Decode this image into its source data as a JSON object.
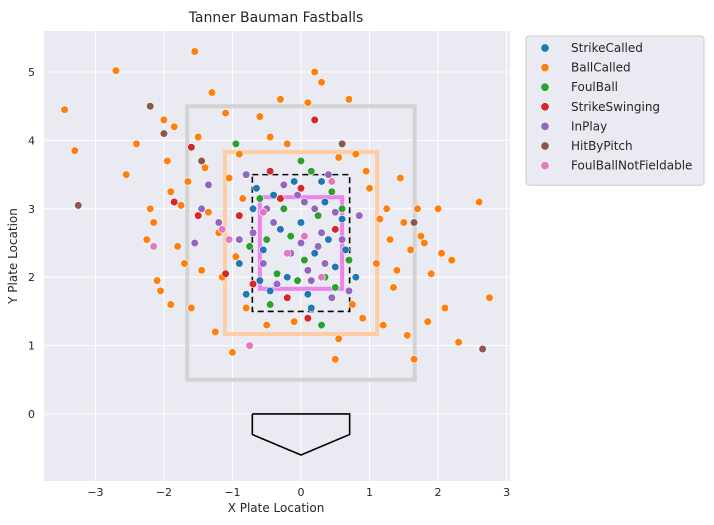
{
  "chart_data": {
    "type": "scatter",
    "title": "Tanner Bauman Fastballs",
    "xlabel": "X Plate Location",
    "ylabel": "Y Plate Location",
    "xlim": [
      -3.75,
      3.05
    ],
    "ylim": [
      -0.98,
      5.6
    ],
    "xticks": [
      -3,
      -2,
      -1,
      0,
      1,
      2,
      3
    ],
    "xtick_labels": [
      "−3",
      "−2",
      "−1",
      "0",
      "1",
      "2",
      "3"
    ],
    "yticks": [
      0,
      1,
      2,
      3,
      4,
      5
    ],
    "ytick_labels": [
      "0",
      "1",
      "2",
      "3",
      "4",
      "5"
    ],
    "grid": true,
    "legend_position": "outside-right",
    "background_color": "#eaeaf2",
    "series": [
      {
        "name": "StrikeCalled",
        "color": "#1f77b4"
      },
      {
        "name": "BallCalled",
        "color": "#ff7f0e"
      },
      {
        "name": "FoulBall",
        "color": "#2ca02c"
      },
      {
        "name": "StrikeSwinging",
        "color": "#d62728"
      },
      {
        "name": "InPlay",
        "color": "#9467bd"
      },
      {
        "name": "HitByPitch",
        "color": "#8c564b"
      },
      {
        "name": "FoulBallNotFieldable",
        "color": "#e377c2"
      }
    ],
    "shapes": [
      {
        "name": "outer-zone",
        "x": [
          -1.66,
          1.66
        ],
        "y": [
          0.5,
          4.5
        ],
        "color": "#d3d3d3",
        "style": "solid"
      },
      {
        "name": "middle-zone",
        "x": [
          -1.11,
          1.11
        ],
        "y": [
          1.17,
          3.83
        ],
        "color": "#ffcca3",
        "style": "solid"
      },
      {
        "name": "inner-zone",
        "x": [
          -0.6,
          0.6
        ],
        "y": [
          1.83,
          3.17
        ],
        "color": "#ee82ee",
        "style": "solid"
      },
      {
        "name": "strike-zone",
        "x": [
          -0.71,
          0.71
        ],
        "y": [
          1.5,
          3.5
        ],
        "color": "#000000",
        "style": "dashed"
      }
    ],
    "home_plate": {
      "x": [
        -0.71,
        0.71,
        0.71,
        0,
        -0.71,
        -0.71
      ],
      "y": [
        0,
        0,
        -0.3,
        -0.6,
        -0.3,
        0
      ]
    },
    "points": {
      "BallCalled": [
        [
          -3.45,
          4.45
        ],
        [
          -3.3,
          3.85
        ],
        [
          -2.7,
          5.02
        ],
        [
          -2.4,
          3.95
        ],
        [
          -2.2,
          3.0
        ],
        [
          -2.15,
          2.8
        ],
        [
          -2.1,
          1.95
        ],
        [
          -2.05,
          1.8
        ],
        [
          -2.0,
          4.3
        ],
        [
          -1.95,
          3.7
        ],
        [
          -1.9,
          3.25
        ],
        [
          -1.85,
          4.2
        ],
        [
          -1.8,
          2.45
        ],
        [
          -1.75,
          3.05
        ],
        [
          -1.7,
          2.2
        ],
        [
          -1.65,
          3.4
        ],
        [
          -1.6,
          1.55
        ],
        [
          -1.5,
          4.05
        ],
        [
          -1.45,
          2.1
        ],
        [
          -1.4,
          3.6
        ],
        [
          -1.3,
          4.7
        ],
        [
          -1.25,
          1.2
        ],
        [
          -1.2,
          2.65
        ],
        [
          -1.1,
          4.4
        ],
        [
          -1.0,
          0.9
        ],
        [
          -0.9,
          3.8
        ],
        [
          -0.8,
          1.55
        ],
        [
          -0.6,
          4.35
        ],
        [
          -0.5,
          1.3
        ],
        [
          -0.3,
          4.6
        ],
        [
          -0.1,
          1.35
        ],
        [
          0.1,
          4.55
        ],
        [
          0.3,
          4.85
        ],
        [
          0.5,
          0.8
        ],
        [
          0.55,
          1.1
        ],
        [
          0.7,
          4.6
        ],
        [
          0.8,
          3.8
        ],
        [
          0.9,
          1.4
        ],
        [
          1.0,
          3.3
        ],
        [
          1.1,
          2.2
        ],
        [
          1.2,
          1.3
        ],
        [
          1.25,
          3.0
        ],
        [
          1.3,
          2.55
        ],
        [
          1.35,
          1.85
        ],
        [
          1.45,
          3.45
        ],
        [
          1.5,
          2.8
        ],
        [
          1.55,
          1.15
        ],
        [
          1.6,
          2.4
        ],
        [
          1.65,
          0.8
        ],
        [
          1.7,
          3.0
        ],
        [
          1.8,
          2.5
        ],
        [
          1.85,
          1.35
        ],
        [
          1.9,
          2.05
        ],
        [
          2.0,
          3.0
        ],
        [
          2.05,
          2.35
        ],
        [
          2.1,
          1.55
        ],
        [
          2.2,
          2.25
        ],
        [
          2.6,
          3.1
        ],
        [
          2.75,
          1.7
        ],
        [
          -1.55,
          5.3
        ],
        [
          0.2,
          5.0
        ],
        [
          -0.2,
          3.95
        ],
        [
          0.95,
          3.55
        ],
        [
          -1.15,
          2.0
        ],
        [
          -1.35,
          2.95
        ],
        [
          -0.95,
          2.3
        ],
        [
          1.15,
          2.85
        ],
        [
          0.75,
          1.6
        ],
        [
          -0.85,
          3.15
        ],
        [
          1.4,
          2.1
        ],
        [
          -2.25,
          2.55
        ],
        [
          -1.9,
          1.6
        ],
        [
          2.3,
          1.05
        ],
        [
          -2.55,
          3.5
        ],
        [
          1.75,
          2.6
        ],
        [
          -1.05,
          3.45
        ],
        [
          0.55,
          3.75
        ],
        [
          -0.45,
          4.05
        ]
      ],
      "StrikeCalled": [
        [
          -0.55,
          2.4
        ],
        [
          -0.4,
          3.2
        ],
        [
          -0.2,
          2.0
        ],
        [
          0.0,
          2.8
        ],
        [
          0.2,
          2.35
        ],
        [
          0.35,
          3.1
        ],
        [
          0.5,
          2.15
        ],
        [
          0.6,
          2.85
        ],
        [
          -0.6,
          1.95
        ],
        [
          -0.1,
          3.4
        ],
        [
          0.1,
          1.75
        ],
        [
          0.4,
          2.55
        ],
        [
          -0.3,
          2.7
        ],
        [
          0.65,
          2.4
        ],
        [
          -0.7,
          3.0
        ],
        [
          -0.9,
          2.2
        ],
        [
          0.8,
          2.0
        ],
        [
          0.15,
          1.55
        ],
        [
          -0.45,
          1.8
        ],
        [
          0.3,
          3.4
        ],
        [
          -0.8,
          1.75
        ],
        [
          -0.65,
          3.3
        ]
      ],
      "FoulBall": [
        [
          -0.5,
          2.55
        ],
        [
          -0.25,
          3.0
        ],
        [
          0.05,
          2.25
        ],
        [
          0.25,
          2.9
        ],
        [
          0.45,
          3.25
        ],
        [
          -0.35,
          2.05
        ],
        [
          0.15,
          3.55
        ],
        [
          -0.05,
          1.95
        ],
        [
          0.5,
          1.85
        ],
        [
          -0.6,
          3.15
        ],
        [
          0.35,
          2.0
        ],
        [
          -0.15,
          2.6
        ],
        [
          0.6,
          3.0
        ],
        [
          -0.95,
          3.95
        ],
        [
          0.3,
          1.3
        ],
        [
          -0.45,
          1.6
        ],
        [
          0.0,
          3.7
        ],
        [
          -0.75,
          2.45
        ],
        [
          0.7,
          2.25
        ]
      ],
      "StrikeSwinging": [
        [
          -0.45,
          3.55
        ],
        [
          0.0,
          3.3
        ],
        [
          -0.9,
          2.9
        ],
        [
          -1.1,
          2.05
        ],
        [
          0.2,
          4.3
        ],
        [
          -0.7,
          1.9
        ],
        [
          0.5,
          2.7
        ],
        [
          -0.2,
          1.7
        ],
        [
          -1.6,
          3.9
        ],
        [
          -1.5,
          2.9
        ],
        [
          0.1,
          1.4
        ],
        [
          -0.3,
          3.15
        ],
        [
          -1.85,
          3.1
        ]
      ],
      "InPlay": [
        [
          -0.4,
          2.8
        ],
        [
          -0.15,
          2.35
        ],
        [
          0.05,
          3.1
        ],
        [
          0.3,
          2.65
        ],
        [
          0.5,
          2.95
        ],
        [
          -0.55,
          2.2
        ],
        [
          -0.25,
          3.35
        ],
        [
          0.15,
          1.95
        ],
        [
          0.4,
          3.5
        ],
        [
          -0.7,
          2.65
        ],
        [
          0.0,
          2.5
        ],
        [
          0.35,
          2.2
        ],
        [
          -0.35,
          1.9
        ],
        [
          0.6,
          2.55
        ],
        [
          -0.05,
          3.2
        ],
        [
          0.25,
          2.45
        ],
        [
          -1.35,
          3.35
        ],
        [
          -0.9,
          2.55
        ],
        [
          -1.55,
          2.5
        ],
        [
          0.85,
          2.9
        ],
        [
          -1.2,
          2.8
        ],
        [
          0.45,
          1.7
        ],
        [
          -0.5,
          3.0
        ],
        [
          0.2,
          3.0
        ],
        [
          -0.8,
          3.5
        ],
        [
          0.7,
          1.8
        ],
        [
          -1.45,
          3.0
        ],
        [
          0.1,
          2.1
        ]
      ],
      "HitByPitch": [
        [
          -3.25,
          3.05
        ],
        [
          -2.2,
          4.5
        ],
        [
          -2.0,
          4.1
        ],
        [
          -1.45,
          3.7
        ],
        [
          1.65,
          2.8
        ],
        [
          2.65,
          0.95
        ],
        [
          0.6,
          3.95
        ]
      ],
      "FoulBallNotFieldable": [
        [
          -0.75,
          1.0
        ],
        [
          -2.15,
          2.45
        ],
        [
          -1.05,
          2.55
        ],
        [
          0.45,
          3.4
        ],
        [
          -0.2,
          2.35
        ],
        [
          -1.15,
          2.7
        ],
        [
          0.3,
          2.0
        ],
        [
          -0.55,
          2.95
        ],
        [
          0.05,
          2.6
        ]
      ]
    }
  }
}
